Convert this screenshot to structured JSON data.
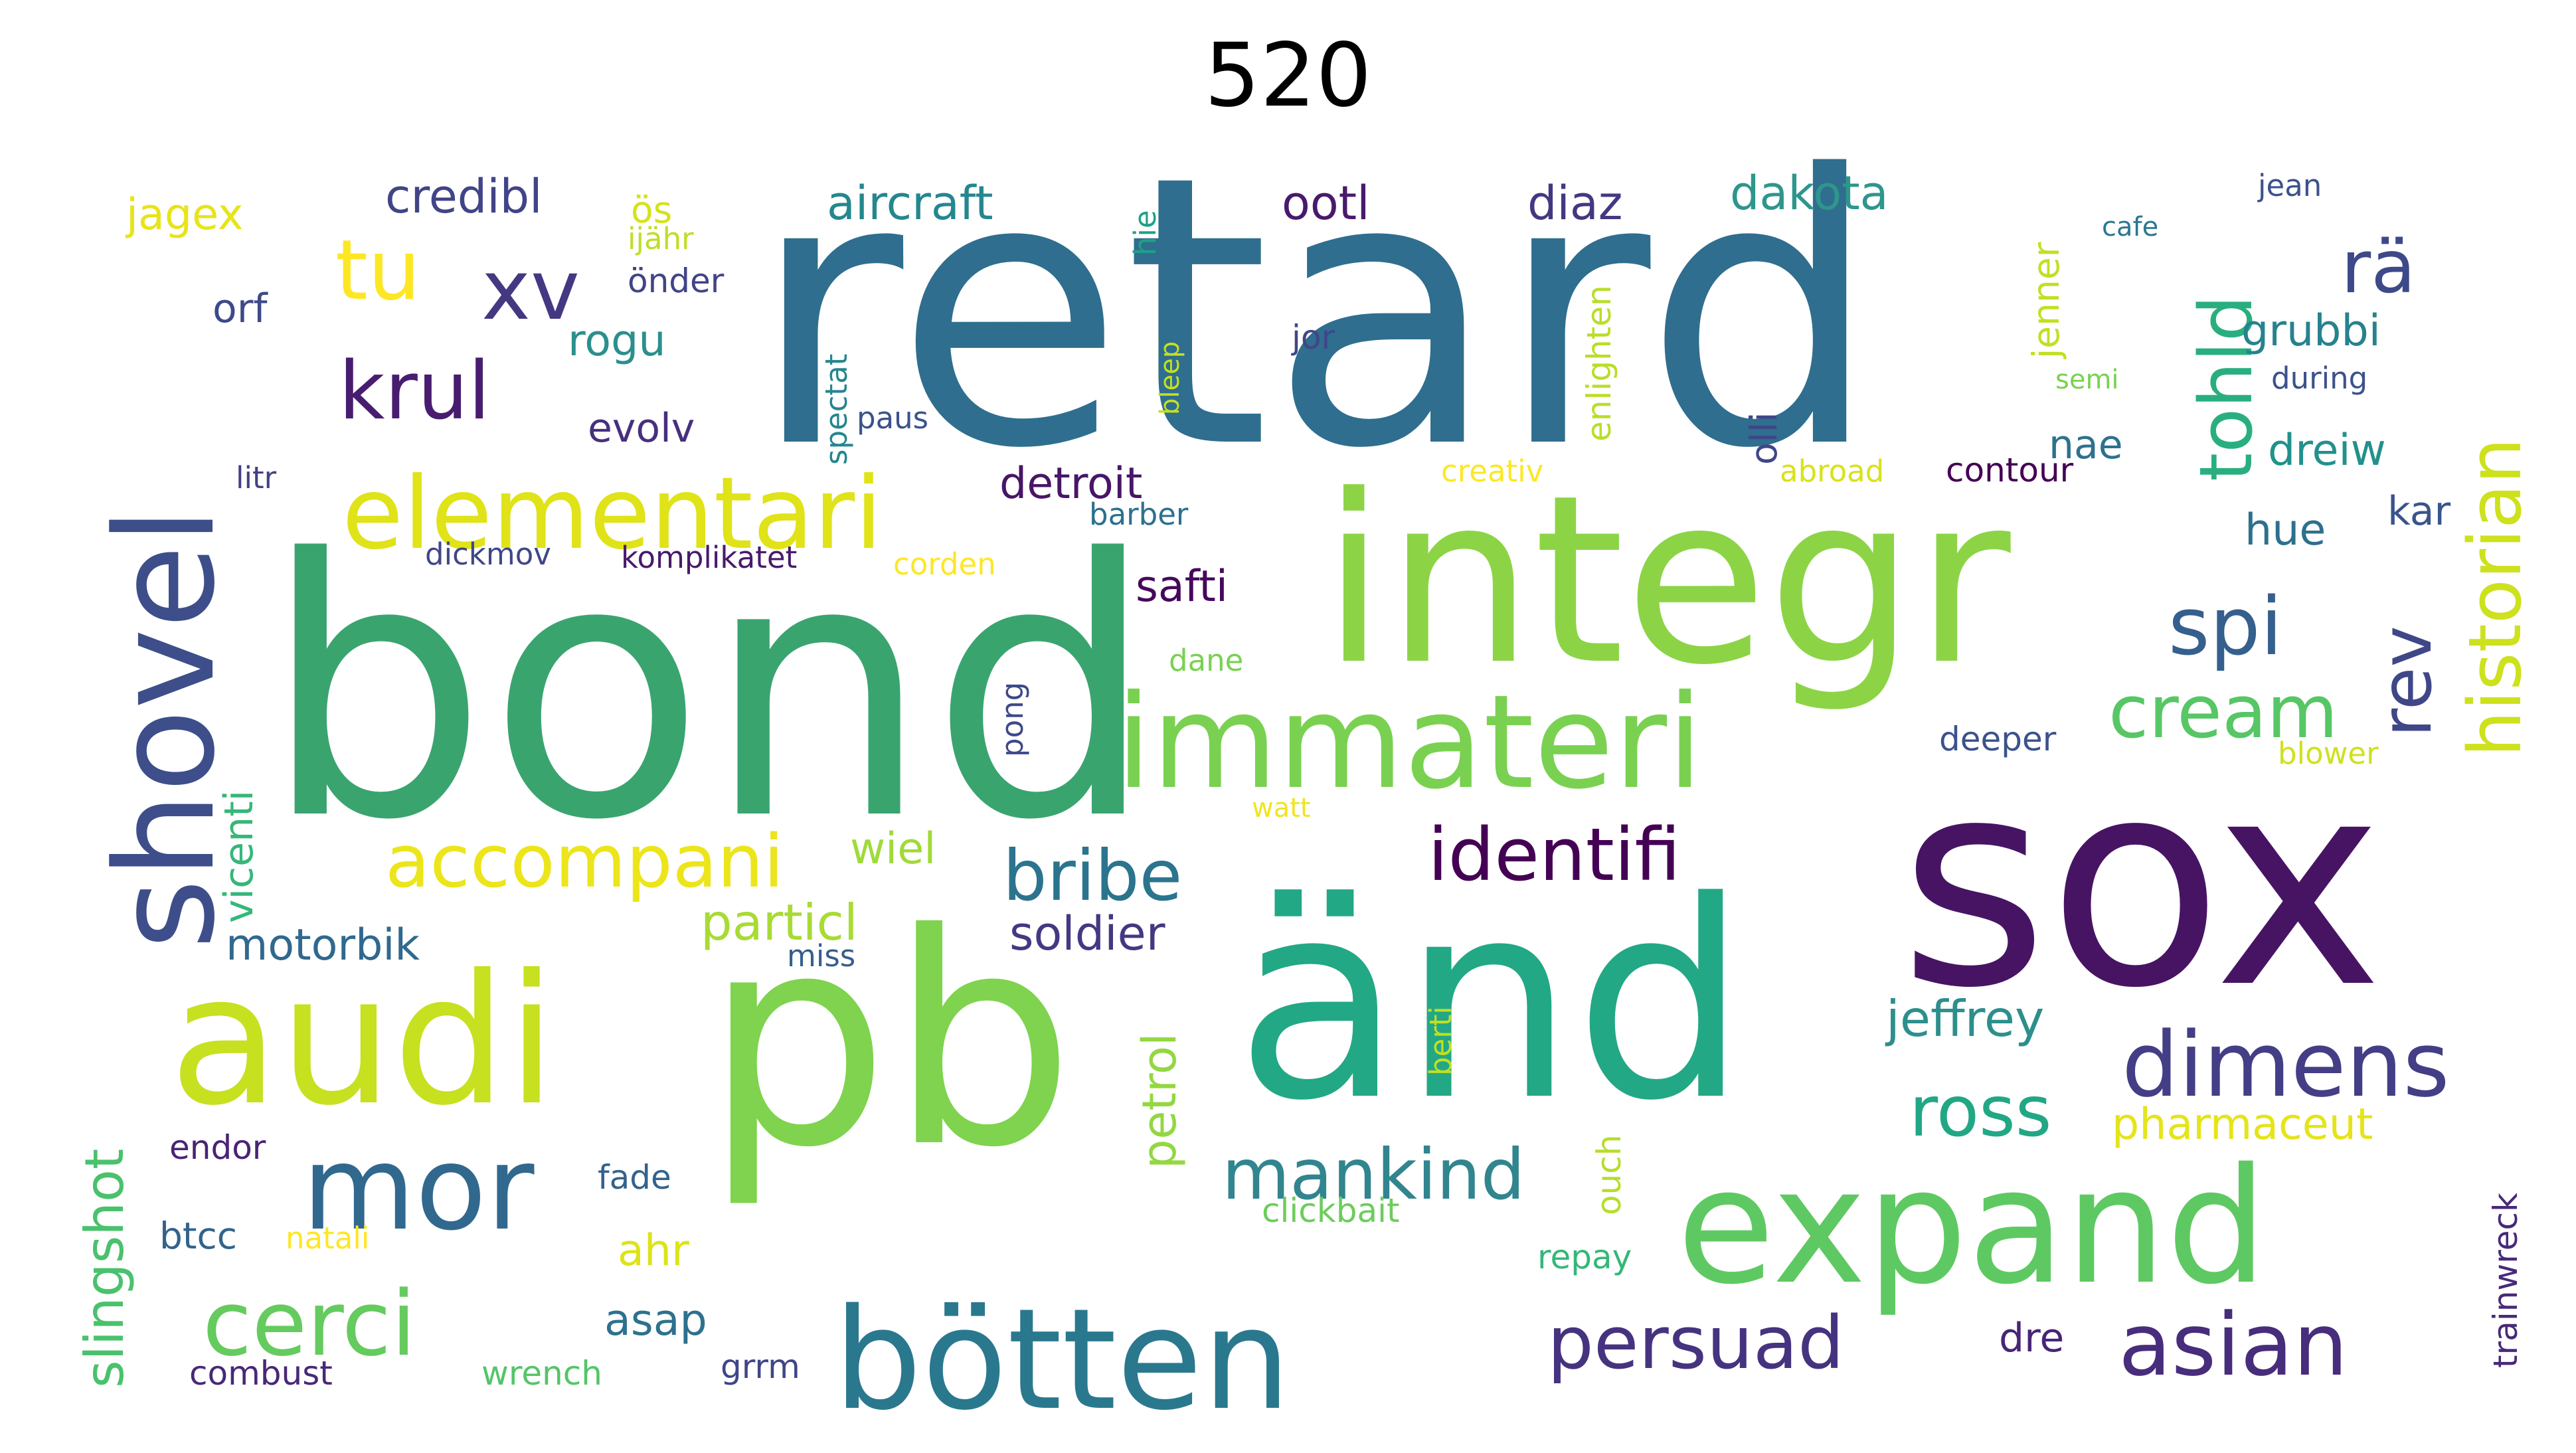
{
  "title": "520",
  "words": [
    {
      "text": "retard",
      "color": "#2f6e8e"
    },
    {
      "text": "bond",
      "color": "#3aa46f"
    },
    {
      "text": "integr",
      "color": "#8cd446"
    },
    {
      "text": "sox",
      "color": "#471464"
    },
    {
      "text": "änd",
      "color": "#22a884"
    },
    {
      "text": "pb",
      "color": "#7fd34e"
    },
    {
      "text": "audi",
      "color": "#c7e020"
    },
    {
      "text": "shovel",
      "color": "#3d4e8a"
    },
    {
      "text": "expand",
      "color": "#5ec962"
    },
    {
      "text": "bötten",
      "color": "#2a788e"
    },
    {
      "text": "immateri",
      "color": "#7ad151"
    },
    {
      "text": "elementari",
      "color": "#dfe318"
    },
    {
      "text": "mor",
      "color": "#31688e"
    },
    {
      "text": "cerci",
      "color": "#65cb5e"
    },
    {
      "text": "dimens",
      "color": "#433e85"
    },
    {
      "text": "asian",
      "color": "#472d7b"
    },
    {
      "text": "persuad",
      "color": "#46337f"
    },
    {
      "text": "accompani",
      "color": "#ece51b"
    },
    {
      "text": "identifi",
      "color": "#440154"
    },
    {
      "text": "bribe",
      "color": "#2b748e"
    },
    {
      "text": "mankind",
      "color": "#31858e"
    },
    {
      "text": "krul",
      "color": "#481d6f"
    },
    {
      "text": "xv",
      "color": "#453882"
    },
    {
      "text": "tu",
      "color": "#fde725"
    },
    {
      "text": "spi",
      "color": "#355f8d"
    },
    {
      "text": "cream",
      "color": "#57c665"
    },
    {
      "text": "ross",
      "color": "#22a785"
    },
    {
      "text": "rä",
      "color": "#3e4989"
    },
    {
      "text": "tohld",
      "color": "#29af7f"
    },
    {
      "text": "historian",
      "color": "#cde11d"
    },
    {
      "text": "rev",
      "color": "#3f4788"
    },
    {
      "text": "slingshot",
      "color": "#4ac16d"
    },
    {
      "text": "credibl",
      "color": "#414487"
    },
    {
      "text": "aircraft",
      "color": "#24878e"
    },
    {
      "text": "ootl",
      "color": "#481a6c"
    },
    {
      "text": "diaz",
      "color": "#453781"
    },
    {
      "text": "dakota",
      "color": "#2e968c"
    },
    {
      "text": "jagex",
      "color": "#e7e419"
    },
    {
      "text": "ös",
      "color": "#d5e21a"
    },
    {
      "text": "ijähr",
      "color": "#bddf26"
    },
    {
      "text": "önder",
      "color": "#414487"
    },
    {
      "text": "orf",
      "color": "#3e4989"
    },
    {
      "text": "rogu",
      "color": "#2c8f8c"
    },
    {
      "text": "evolv",
      "color": "#46307e"
    },
    {
      "text": "detroit",
      "color": "#481567"
    },
    {
      "text": "safti",
      "color": "#46085c"
    },
    {
      "text": "nae",
      "color": "#2c728e"
    },
    {
      "text": "grubbi",
      "color": "#26828e"
    },
    {
      "text": "dreiw",
      "color": "#21918c"
    },
    {
      "text": "hue",
      "color": "#2d708e"
    },
    {
      "text": "kar",
      "color": "#3a548c"
    },
    {
      "text": "wiel",
      "color": "#a0da39"
    },
    {
      "text": "particl",
      "color": "#a8db34"
    },
    {
      "text": "soldier",
      "color": "#453882"
    },
    {
      "text": "motorbik",
      "color": "#31688e"
    },
    {
      "text": "vicenti",
      "color": "#35b779"
    },
    {
      "text": "jeffrey",
      "color": "#2c8f8c"
    },
    {
      "text": "pharmaceut",
      "color": "#e5e419"
    },
    {
      "text": "petrol",
      "color": "#93d741"
    },
    {
      "text": "btcc",
      "color": "#33638d"
    },
    {
      "text": "endor",
      "color": "#482475"
    },
    {
      "text": "fade",
      "color": "#33638d"
    },
    {
      "text": "ahr",
      "color": "#dde318"
    },
    {
      "text": "asap",
      "color": "#2d718e"
    },
    {
      "text": "natali",
      "color": "#fde725"
    },
    {
      "text": "combust",
      "color": "#482878"
    },
    {
      "text": "wrench",
      "color": "#54c568"
    },
    {
      "text": "grrm",
      "color": "#404588"
    },
    {
      "text": "dre",
      "color": "#482576"
    },
    {
      "text": "trainwreck",
      "color": "#482979"
    },
    {
      "text": "repay",
      "color": "#35b779"
    },
    {
      "text": "clickbait",
      "color": "#6ccd5a"
    },
    {
      "text": "ouch",
      "color": "#b5de2b"
    },
    {
      "text": "berti",
      "color": "#c2df23"
    },
    {
      "text": "miss",
      "color": "#355e8d"
    },
    {
      "text": "watt",
      "color": "#f1e51d"
    },
    {
      "text": "deeper",
      "color": "#3b528b"
    },
    {
      "text": "blower",
      "color": "#d0e11c"
    },
    {
      "text": "dane",
      "color": "#7ad151"
    },
    {
      "text": "pong",
      "color": "#3e4989"
    },
    {
      "text": "dickmov",
      "color": "#3f4788"
    },
    {
      "text": "komplikatet",
      "color": "#481a6c"
    },
    {
      "text": "corden",
      "color": "#fde725"
    },
    {
      "text": "barber",
      "color": "#2d708e"
    },
    {
      "text": "litr",
      "color": "#424086"
    },
    {
      "text": "creativ",
      "color": "#fde725"
    },
    {
      "text": "abroad",
      "color": "#d8e219"
    },
    {
      "text": "contour",
      "color": "#440154"
    },
    {
      "text": "spectat",
      "color": "#24868e"
    },
    {
      "text": "paus",
      "color": "#3b528b"
    },
    {
      "text": "bleep",
      "color": "#c5e021"
    },
    {
      "text": "jor",
      "color": "#404688"
    },
    {
      "text": "hie",
      "color": "#1fa187"
    },
    {
      "text": "enlighten",
      "color": "#b8de29"
    },
    {
      "text": "olli",
      "color": "#3f4788"
    },
    {
      "text": "jenner",
      "color": "#c2df23"
    },
    {
      "text": "cafe",
      "color": "#2a788e"
    },
    {
      "text": "semi",
      "color": "#7ad151"
    },
    {
      "text": "during",
      "color": "#3b528b"
    },
    {
      "text": "jean",
      "color": "#3b528b"
    }
  ]
}
